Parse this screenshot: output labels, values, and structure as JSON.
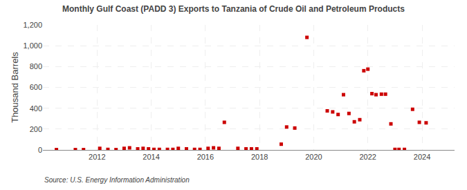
{
  "chart_data": {
    "type": "scatter",
    "title": "Monthly Gulf Coast (PADD 3) Exports to Tanzania of Crude Oil and Petroleum Products",
    "y_label": "Thousand Barrels",
    "annotations": [
      "Source: U.S. Energy Information Administration"
    ],
    "color": "#cc0000",
    "marker": "square",
    "grid": true,
    "xlim": [
      2010.0,
      2025.2
    ],
    "xticks": [
      2012,
      2014,
      2016,
      2018,
      2020,
      2022,
      2024
    ],
    "ylim": [
      0,
      1200
    ],
    "yticks": [
      0,
      200,
      400,
      600,
      800,
      {
        "value": 1000,
        "label": "1,000"
      },
      {
        "value": 1200,
        "label": "1,200"
      }
    ],
    "x": [
      2010.5,
      2011.2,
      2011.5,
      2012.1,
      2012.4,
      2012.7,
      2013.0,
      2013.2,
      2013.5,
      2013.7,
      2013.9,
      2014.1,
      2014.3,
      2014.6,
      2014.8,
      2015.0,
      2015.3,
      2015.6,
      2015.8,
      2016.1,
      2016.3,
      2016.5,
      2016.7,
      2017.2,
      2017.5,
      2017.7,
      2017.9,
      2018.8,
      2019.0,
      2019.3,
      2019.75,
      2020.5,
      2020.7,
      2020.9,
      2021.1,
      2021.3,
      2021.5,
      2021.7,
      2021.85,
      2022.0,
      2022.15,
      2022.3,
      2022.5,
      2022.65,
      2022.85,
      2023.0,
      2023.15,
      2023.35,
      2023.65,
      2023.9,
      2024.15
    ],
    "values": [
      3,
      3,
      3,
      15,
      5,
      3,
      15,
      20,
      10,
      15,
      10,
      5,
      5,
      5,
      5,
      15,
      10,
      5,
      5,
      15,
      20,
      15,
      265,
      15,
      10,
      10,
      10,
      55,
      220,
      210,
      1080,
      375,
      365,
      340,
      530,
      350,
      270,
      290,
      760,
      775,
      540,
      530,
      535,
      535,
      250,
      5,
      5,
      5,
      390,
      265,
      260
    ]
  }
}
